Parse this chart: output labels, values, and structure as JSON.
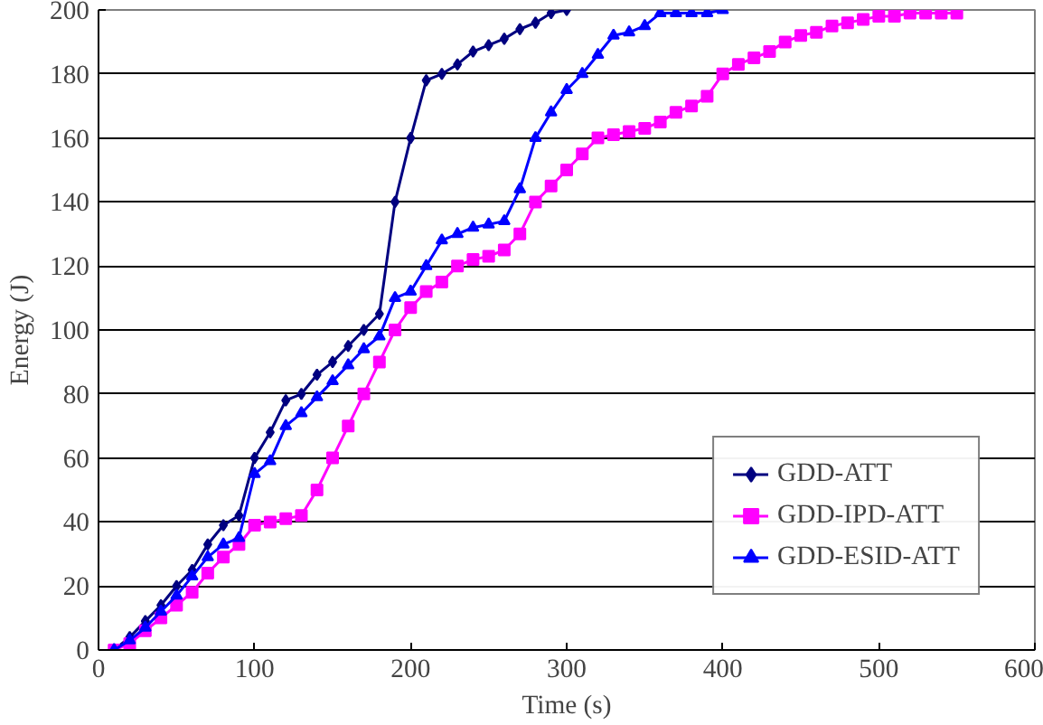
{
  "chart_data": {
    "type": "line",
    "xlabel": "Time (s)",
    "ylabel": "Energy (J)",
    "xlim": [
      0,
      600
    ],
    "ylim": [
      0,
      200
    ],
    "xticks": [
      0,
      100,
      200,
      300,
      400,
      500,
      600
    ],
    "yticks": [
      0,
      20,
      40,
      60,
      80,
      100,
      120,
      140,
      160,
      180,
      200
    ],
    "grid": "y",
    "legend": "bottom right",
    "series": [
      {
        "name": "GDD-ATT",
        "color": "#000080",
        "marker": "diamond",
        "x": [
          10,
          20,
          30,
          40,
          50,
          60,
          70,
          80,
          90,
          100,
          110,
          120,
          130,
          140,
          150,
          160,
          170,
          180,
          190,
          200,
          210,
          220,
          230,
          240,
          250,
          260,
          270,
          280,
          290,
          300
        ],
        "values": [
          0,
          4,
          9,
          14,
          20,
          25,
          33,
          39,
          42,
          60,
          68,
          78,
          80,
          86,
          90,
          95,
          100,
          105,
          140,
          160,
          178,
          180,
          183,
          187,
          189,
          191,
          194,
          196,
          199,
          200
        ]
      },
      {
        "name": "GDD-IPD-ATT",
        "color": "#ff00ff",
        "marker": "square",
        "x": [
          10,
          20,
          30,
          40,
          50,
          60,
          70,
          80,
          90,
          100,
          110,
          120,
          130,
          140,
          150,
          160,
          170,
          180,
          190,
          200,
          210,
          220,
          230,
          240,
          250,
          260,
          270,
          280,
          290,
          300,
          310,
          320,
          330,
          340,
          350,
          360,
          370,
          380,
          390,
          400,
          410,
          420,
          430,
          440,
          450,
          460,
          470,
          480,
          490,
          500,
          510,
          520,
          530,
          540,
          550
        ],
        "values": [
          0,
          2,
          6,
          10,
          14,
          18,
          24,
          29,
          33,
          39,
          40,
          41,
          42,
          50,
          60,
          70,
          80,
          90,
          100,
          107,
          112,
          115,
          120,
          122,
          123,
          125,
          130,
          140,
          145,
          150,
          155,
          160,
          161,
          162,
          163,
          165,
          168,
          170,
          173,
          180,
          183,
          185,
          187,
          190,
          192,
          193,
          195,
          196,
          197,
          198,
          198,
          199,
          199,
          199,
          199
        ]
      },
      {
        "name": "GDD-ESID-ATT",
        "color": "#0000ff",
        "marker": "triangle",
        "x": [
          10,
          20,
          30,
          40,
          50,
          60,
          70,
          80,
          90,
          100,
          110,
          120,
          130,
          140,
          150,
          160,
          170,
          180,
          190,
          200,
          210,
          220,
          230,
          240,
          250,
          260,
          270,
          280,
          290,
          300,
          310,
          320,
          330,
          340,
          350,
          360,
          370,
          380,
          390,
          400
        ],
        "values": [
          0,
          3,
          7,
          12,
          17,
          23,
          29,
          33,
          35,
          55,
          59,
          70,
          74,
          79,
          84,
          89,
          94,
          98,
          110,
          112,
          120,
          128,
          130,
          132,
          133,
          134,
          144,
          160,
          168,
          175,
          180,
          186,
          192,
          193,
          195,
          199,
          199,
          199,
          199,
          200
        ]
      }
    ]
  }
}
